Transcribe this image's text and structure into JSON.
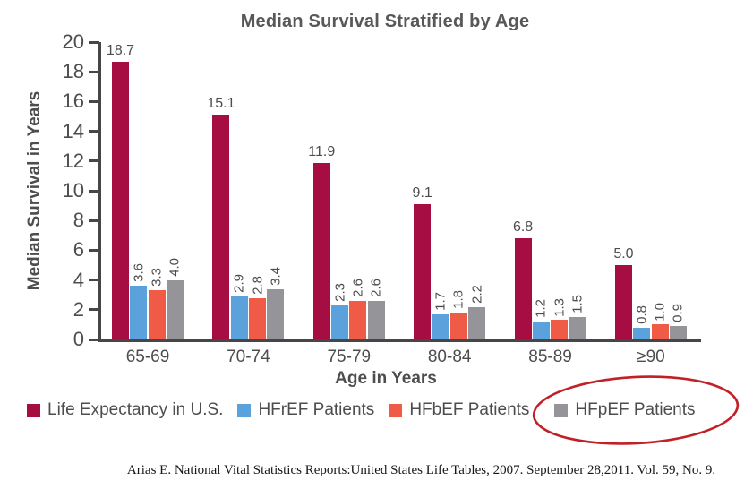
{
  "chart_data": {
    "type": "bar",
    "title": "Median Survival Stratified by Age",
    "xlabel": "Age in Years",
    "ylabel": "Median Survival in Years",
    "ylim": [
      0,
      20
    ],
    "y_tick_step": 2,
    "grid": false,
    "legend_position": "bottom",
    "categories": [
      "65-69",
      "70-74",
      "75-79",
      "80-84",
      "85-89",
      "≥90"
    ],
    "series": [
      {
        "name": "Life Expectancy in U.S.",
        "color": "#A50D43",
        "label_orientation": "horizontal",
        "values": [
          18.7,
          15.1,
          11.9,
          9.1,
          6.8,
          5.0
        ]
      },
      {
        "name": "HFrEF Patients",
        "color": "#5BA1DB",
        "label_orientation": "vertical",
        "values": [
          3.6,
          2.9,
          2.3,
          1.7,
          1.2,
          0.8
        ]
      },
      {
        "name": "HFbEF Patients",
        "color": "#EF5B46",
        "label_orientation": "vertical",
        "values": [
          3.3,
          2.8,
          2.6,
          1.8,
          1.3,
          1.0
        ]
      },
      {
        "name": "HFpEF Patients",
        "color": "#949499",
        "label_orientation": "vertical",
        "values": [
          4.0,
          3.4,
          2.6,
          2.2,
          1.5,
          0.9
        ]
      }
    ],
    "annotation": {
      "type": "hand-drawn-ellipse",
      "target": "HFpEF Patients",
      "color": "#C02026"
    },
    "axis_color": "#464648",
    "text_color": "#4D4D4F"
  },
  "citation": "Arias E. National Vital Statistics Reports:United States Life Tables, 2007. September 28,2011. Vol. 59, No. 9."
}
